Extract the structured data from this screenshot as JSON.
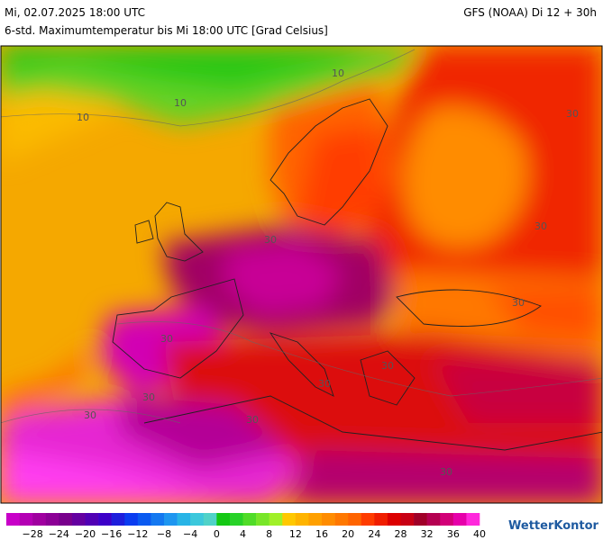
{
  "header": {
    "datetime": "Mi, 02.07.2025 18:00 UTC",
    "model": "GFS (NOAA) Di 12 + 30h",
    "subtitle": "6-std. Maximumtemperatur bis Mi 18:00 UTC [Grad Celsius]"
  },
  "map": {
    "contour_labels": [
      "10",
      "10",
      "10",
      "30",
      "30",
      "30",
      "30",
      "30",
      "30",
      "30",
      "30",
      "30",
      "30",
      "30"
    ]
  },
  "legend": {
    "colors": [
      "#c800c8",
      "#b400b4",
      "#a000a0",
      "#8c0096",
      "#78008c",
      "#6400a0",
      "#5000b4",
      "#3c00c8",
      "#1e1edc",
      "#0a3cf0",
      "#0a5af0",
      "#1478f0",
      "#1e96f0",
      "#28b4e6",
      "#3cc8dc",
      "#50d2c8",
      "#14c814",
      "#28d228",
      "#50dc28",
      "#78e628",
      "#a0f028",
      "#ffc800",
      "#ffb400",
      "#ffa000",
      "#ff8c00",
      "#ff7800",
      "#ff6400",
      "#ff3c00",
      "#f01e00",
      "#dc0000",
      "#c80014",
      "#a00028",
      "#b40050",
      "#d20078",
      "#e600aa",
      "#ff28dc"
    ],
    "ticks": [
      "−28",
      "−24",
      "−20",
      "−16",
      "−12",
      "−8",
      "−4",
      "0",
      "4",
      "8",
      "12",
      "16",
      "20",
      "24",
      "28",
      "32",
      "36",
      "40"
    ]
  },
  "logo": "WetterKontor"
}
